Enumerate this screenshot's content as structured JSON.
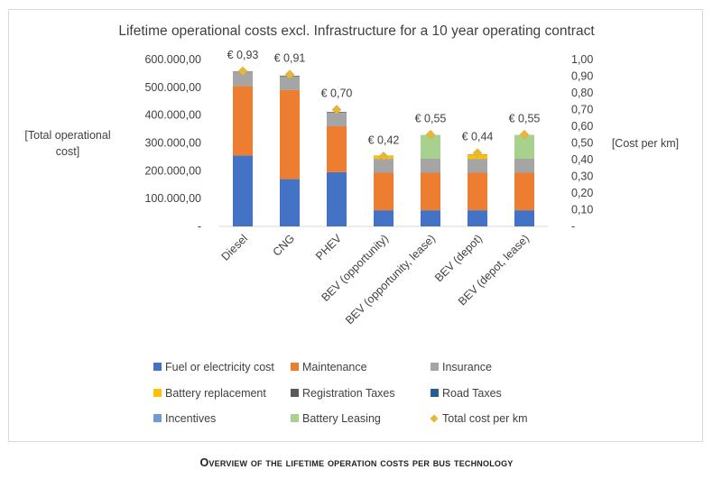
{
  "chart_data": {
    "type": "bar",
    "stacked": true,
    "title": "Lifetime operational costs excl. Infrastructure for a 10 year operating contract",
    "ylabel_left": "[Total operational cost]",
    "ylabel_right": "[Cost per km]",
    "ylim_left": [
      0,
      600000
    ],
    "ylim_right": [
      0,
      1.0
    ],
    "yticks_left": [
      "-",
      "100.000,00",
      "200.000,00",
      "300.000,00",
      "400.000,00",
      "500.000,00",
      "600.000,00"
    ],
    "yticks_right": [
      "-",
      "0,10",
      "0,20",
      "0,30",
      "0,40",
      "0,50",
      "0,60",
      "0,70",
      "0,80",
      "0,90",
      "1,00"
    ],
    "categories": [
      "Diesel",
      "CNG",
      "PHEV",
      "BEV (opportunity)",
      "BEV (opportunity, lease)",
      "BEV (depot)",
      "BEV (depot, lease)"
    ],
    "series": [
      {
        "name": "Fuel or electricity cost",
        "color": "#4472c4",
        "values": [
          255000,
          170000,
          195000,
          58000,
          58000,
          58000,
          58000
        ]
      },
      {
        "name": "Maintenance",
        "color": "#ed7d31",
        "values": [
          250000,
          320000,
          165000,
          135000,
          135000,
          135000,
          135000
        ]
      },
      {
        "name": "Insurance",
        "color": "#a5a5a5",
        "values": [
          50000,
          50000,
          50000,
          50000,
          50000,
          50000,
          50000
        ]
      },
      {
        "name": "Battery replacement",
        "color": "#ffc000",
        "values": [
          0,
          0,
          0,
          10000,
          0,
          15000,
          0
        ]
      },
      {
        "name": "Registration Taxes",
        "color": "#5a5a5a",
        "values": [
          2000,
          2000,
          2000,
          1000,
          1000,
          1000,
          1000
        ]
      },
      {
        "name": "Road Taxes",
        "color": "#255e91",
        "values": [
          0,
          0,
          0,
          0,
          0,
          0,
          0
        ]
      },
      {
        "name": "Incentives",
        "color": "#6f9cd6",
        "values": [
          0,
          0,
          0,
          0,
          0,
          0,
          0
        ]
      },
      {
        "name": "Battery Leasing",
        "color": "#a9d18e",
        "values": [
          0,
          0,
          0,
          0,
          85000,
          0,
          85000
        ]
      }
    ],
    "line_series": {
      "name": "Total cost per km",
      "color": "#e6b83a",
      "marker": "diamond",
      "axis": "right",
      "values": [
        0.93,
        0.91,
        0.7,
        0.42,
        0.55,
        0.44,
        0.55
      ],
      "labels": [
        "€ 0,93",
        "€ 0,91",
        "€ 0,70",
        "€ 0,42",
        "€ 0,55",
        "€ 0,44",
        "€ 0,55"
      ]
    },
    "legend": {
      "placement": "bottom",
      "entries": [
        {
          "name": "Fuel or electricity cost",
          "color": "#4472c4",
          "kind": "box"
        },
        {
          "name": "Maintenance",
          "color": "#ed7d31",
          "kind": "box"
        },
        {
          "name": "Insurance",
          "color": "#a5a5a5",
          "kind": "box"
        },
        {
          "name": "Battery replacement",
          "color": "#ffc000",
          "kind": "box"
        },
        {
          "name": "Registration Taxes",
          "color": "#5a5a5a",
          "kind": "box"
        },
        {
          "name": "Road Taxes",
          "color": "#255e91",
          "kind": "box"
        },
        {
          "name": "Incentives",
          "color": "#6f9cd6",
          "kind": "box"
        },
        {
          "name": "Battery Leasing",
          "color": "#a9d18e",
          "kind": "box"
        },
        {
          "name": "Total cost per km",
          "color": "#e6b83a",
          "kind": "diamond"
        }
      ]
    },
    "grid": false
  },
  "caption": "Overview of the lifetime operation costs per bus technology"
}
